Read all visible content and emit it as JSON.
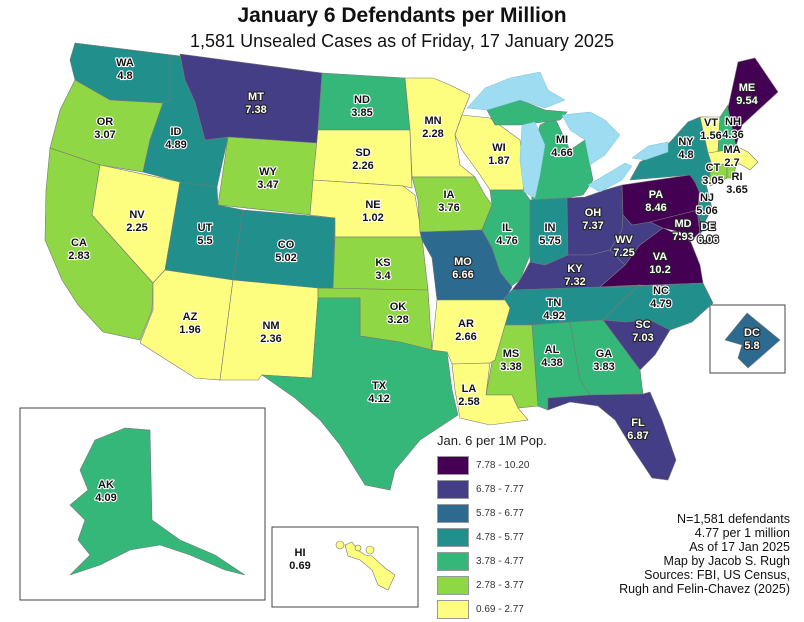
{
  "title": "January 6 Defendants per Million",
  "subtitle": "1,581 Unsealed Cases as of Friday, 17 January 2025",
  "states": [
    {
      "abbr": "WA",
      "value": "4.8"
    },
    {
      "abbr": "OR",
      "value": "3.07"
    },
    {
      "abbr": "CA",
      "value": "2.83"
    },
    {
      "abbr": "NV",
      "value": "2.25"
    },
    {
      "abbr": "ID",
      "value": "4.89"
    },
    {
      "abbr": "MT",
      "value": "7.38"
    },
    {
      "abbr": "WY",
      "value": "3.47"
    },
    {
      "abbr": "UT",
      "value": "5.5"
    },
    {
      "abbr": "CO",
      "value": "5.02"
    },
    {
      "abbr": "AZ",
      "value": "1.96"
    },
    {
      "abbr": "NM",
      "value": "2.36"
    },
    {
      "abbr": "ND",
      "value": "3.85"
    },
    {
      "abbr": "SD",
      "value": "2.26"
    },
    {
      "abbr": "NE",
      "value": "1.02"
    },
    {
      "abbr": "KS",
      "value": "3.4"
    },
    {
      "abbr": "OK",
      "value": "3.28"
    },
    {
      "abbr": "TX",
      "value": "4.12"
    },
    {
      "abbr": "MN",
      "value": "2.28"
    },
    {
      "abbr": "WI",
      "value": "1.87"
    },
    {
      "abbr": "MI",
      "value": "4.66"
    },
    {
      "abbr": "IA",
      "value": "3.76"
    },
    {
      "abbr": "IL",
      "value": "4.76"
    },
    {
      "abbr": "IN",
      "value": "5.75"
    },
    {
      "abbr": "OH",
      "value": "7.37"
    },
    {
      "abbr": "MO",
      "value": "6.66"
    },
    {
      "abbr": "KY",
      "value": "7.32"
    },
    {
      "abbr": "WV",
      "value": "7.25"
    },
    {
      "abbr": "VA",
      "value": "10.2"
    },
    {
      "abbr": "PA",
      "value": "8.46"
    },
    {
      "abbr": "MD",
      "value": "7.93"
    },
    {
      "abbr": "DE",
      "value": "6.06"
    },
    {
      "abbr": "NJ",
      "value": "5.06"
    },
    {
      "abbr": "NY",
      "value": "4.8"
    },
    {
      "abbr": "VT",
      "value": "1.56"
    },
    {
      "abbr": "NH",
      "value": "4.36"
    },
    {
      "abbr": "MA",
      "value": "2.7"
    },
    {
      "abbr": "CT",
      "value": "3.05"
    },
    {
      "abbr": "RI",
      "value": "3.65"
    },
    {
      "abbr": "ME",
      "value": "9.54"
    },
    {
      "abbr": "TN",
      "value": "4.92"
    },
    {
      "abbr": "NC",
      "value": "4.79"
    },
    {
      "abbr": "SC",
      "value": "7.03"
    },
    {
      "abbr": "GA",
      "value": "3.83"
    },
    {
      "abbr": "AL",
      "value": "4.38"
    },
    {
      "abbr": "MS",
      "value": "3.38"
    },
    {
      "abbr": "AR",
      "value": "2.66"
    },
    {
      "abbr": "LA",
      "value": "2.58"
    },
    {
      "abbr": "FL",
      "value": "6.87"
    },
    {
      "abbr": "AK",
      "value": "4.09"
    },
    {
      "abbr": "HI",
      "value": "0.69"
    },
    {
      "abbr": "DC",
      "value": "5.8"
    }
  ],
  "legend": {
    "title": "Jan. 6 per 1M Pop.",
    "bins": [
      {
        "label": "7.78 - 10.20",
        "min": 7.78,
        "color": "#440154"
      },
      {
        "label": "6.78 - 7.77",
        "min": 6.78,
        "color": "#433e85"
      },
      {
        "label": "5.78 - 6.77",
        "min": 5.78,
        "color": "#2c6a8f"
      },
      {
        "label": "4.78 - 5.77",
        "min": 4.78,
        "color": "#21908c"
      },
      {
        "label": "3.78 - 4.77",
        "min": 3.78,
        "color": "#35b779"
      },
      {
        "label": "2.78 - 3.77",
        "min": 2.78,
        "color": "#8fd744"
      },
      {
        "label": "0.69 - 2.77",
        "min": 0,
        "color": "#fdfd80"
      }
    ]
  },
  "notes": [
    "N=1,581 defendants",
    "4.77 per 1 million",
    "As of 17 Jan 2025",
    "Map by Jacob S. Rugh",
    "Sources: FBI, US Census,",
    "Rugh and Felin-Chavez (2025)"
  ]
}
